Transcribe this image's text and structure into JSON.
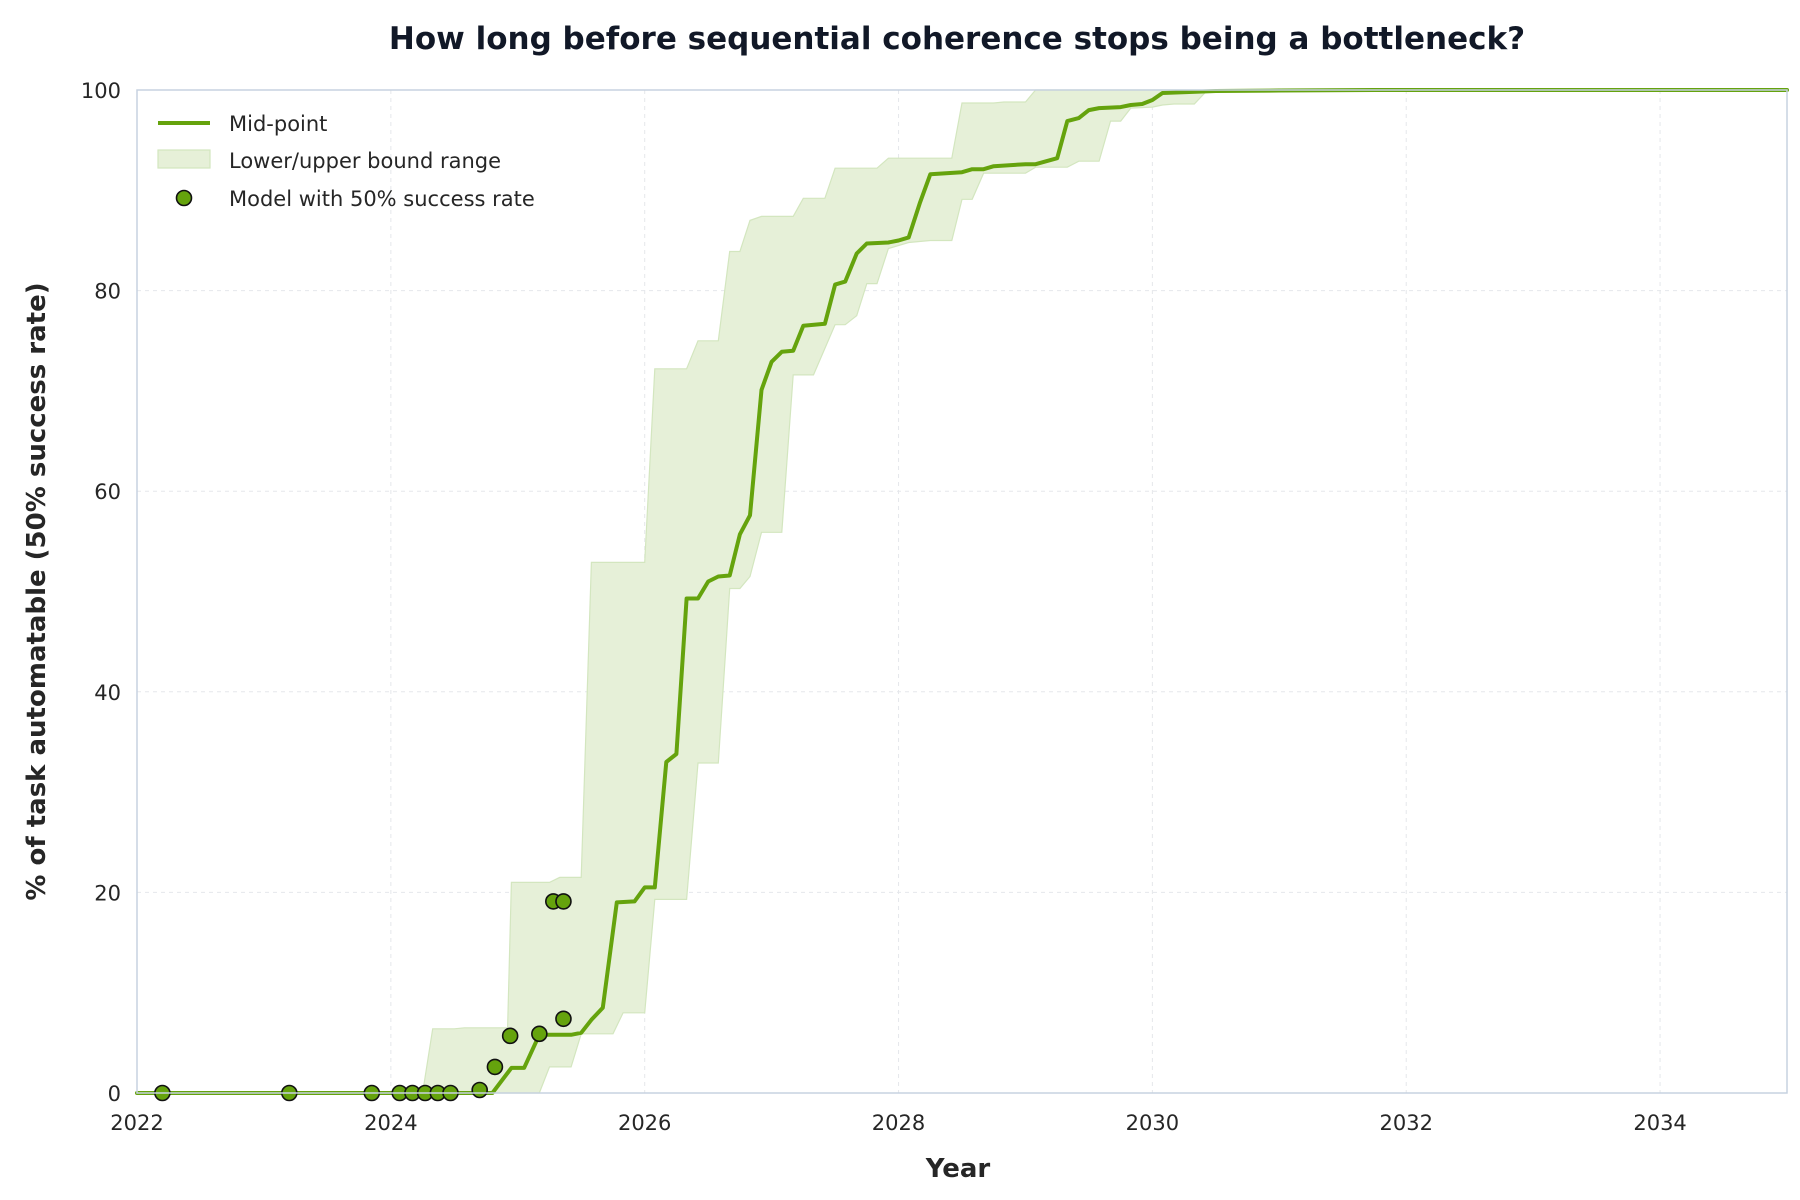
{
  "chart_data": {
    "type": "line",
    "title": "How long before sequential coherence stops being a bottleneck?",
    "xlabel": "Year",
    "ylabel": "% of task automatable (50% success rate)",
    "xlim": [
      2022,
      2035
    ],
    "ylim": [
      0,
      100
    ],
    "xticks": [
      2022,
      2024,
      2026,
      2028,
      2030,
      2032,
      2034
    ],
    "yticks": [
      0,
      20,
      40,
      60,
      80,
      100
    ],
    "grid": true,
    "legend_position": "top-left",
    "colors": {
      "line": "#65a30d",
      "band": "#e6f0d8",
      "band_edge": "#d3e6bf",
      "marker_fill": "#65a30d",
      "marker_edge": "#111111"
    },
    "series": [
      {
        "name": "Mid-point",
        "kind": "line",
        "points": [
          [
            2022.0,
            0
          ],
          [
            2024.8,
            0
          ],
          [
            2024.95,
            2.5
          ],
          [
            2025.05,
            2.5
          ],
          [
            2025.17,
            5.8
          ],
          [
            2025.42,
            5.8
          ],
          [
            2025.5,
            6.0
          ],
          [
            2025.58,
            7.3
          ],
          [
            2025.67,
            8.5
          ],
          [
            2025.78,
            19.0
          ],
          [
            2025.92,
            19.1
          ],
          [
            2026.0,
            20.5
          ],
          [
            2026.08,
            20.5
          ],
          [
            2026.17,
            33.0
          ],
          [
            2026.25,
            33.8
          ],
          [
            2026.33,
            49.3
          ],
          [
            2026.42,
            49.3
          ],
          [
            2026.5,
            51.0
          ],
          [
            2026.58,
            51.5
          ],
          [
            2026.67,
            51.6
          ],
          [
            2026.75,
            55.7
          ],
          [
            2026.83,
            57.6
          ],
          [
            2026.92,
            70.1
          ],
          [
            2027.0,
            72.9
          ],
          [
            2027.08,
            73.9
          ],
          [
            2027.17,
            74.0
          ],
          [
            2027.25,
            76.5
          ],
          [
            2027.42,
            76.7
          ],
          [
            2027.5,
            80.6
          ],
          [
            2027.58,
            80.9
          ],
          [
            2027.67,
            83.7
          ],
          [
            2027.75,
            84.7
          ],
          [
            2027.92,
            84.8
          ],
          [
            2028.0,
            85.0
          ],
          [
            2028.08,
            85.3
          ],
          [
            2028.17,
            88.8
          ],
          [
            2028.25,
            91.6
          ],
          [
            2028.5,
            91.8
          ],
          [
            2028.58,
            92.1
          ],
          [
            2028.67,
            92.1
          ],
          [
            2028.75,
            92.4
          ],
          [
            2029.0,
            92.6
          ],
          [
            2029.08,
            92.6
          ],
          [
            2029.25,
            93.2
          ],
          [
            2029.33,
            96.9
          ],
          [
            2029.42,
            97.2
          ],
          [
            2029.5,
            98.0
          ],
          [
            2029.58,
            98.2
          ],
          [
            2029.75,
            98.3
          ],
          [
            2029.83,
            98.5
          ],
          [
            2029.92,
            98.6
          ],
          [
            2030.0,
            99.0
          ],
          [
            2030.08,
            99.7
          ],
          [
            2030.5,
            99.9
          ],
          [
            2031.0,
            99.95
          ],
          [
            2031.75,
            100
          ],
          [
            2035.0,
            100
          ]
        ]
      },
      {
        "name": "Lower/upper bound range",
        "kind": "band",
        "upper": [
          [
            2022.0,
            0
          ],
          [
            2024.25,
            0
          ],
          [
            2024.33,
            6.4
          ],
          [
            2024.5,
            6.4
          ],
          [
            2024.58,
            6.5
          ],
          [
            2024.92,
            6.5
          ],
          [
            2024.95,
            21.0
          ],
          [
            2025.25,
            21.0
          ],
          [
            2025.33,
            21.5
          ],
          [
            2025.5,
            21.5
          ],
          [
            2025.58,
            52.9
          ],
          [
            2026.0,
            52.9
          ],
          [
            2026.08,
            72.2
          ],
          [
            2026.33,
            72.2
          ],
          [
            2026.42,
            75.0
          ],
          [
            2026.58,
            75.0
          ],
          [
            2026.67,
            83.9
          ],
          [
            2026.75,
            83.9
          ],
          [
            2026.83,
            87.0
          ],
          [
            2026.92,
            87.4
          ],
          [
            2027.17,
            87.4
          ],
          [
            2027.25,
            89.2
          ],
          [
            2027.42,
            89.2
          ],
          [
            2027.5,
            92.2
          ],
          [
            2027.83,
            92.2
          ],
          [
            2027.92,
            93.2
          ],
          [
            2028.42,
            93.2
          ],
          [
            2028.5,
            98.7
          ],
          [
            2028.75,
            98.7
          ],
          [
            2028.83,
            98.8
          ],
          [
            2029.0,
            98.8
          ],
          [
            2029.08,
            100
          ],
          [
            2035.0,
            100
          ]
        ],
        "lower": [
          [
            2022.0,
            0
          ],
          [
            2025.17,
            0
          ],
          [
            2025.25,
            2.6
          ],
          [
            2025.42,
            2.6
          ],
          [
            2025.5,
            5.9
          ],
          [
            2025.75,
            5.9
          ],
          [
            2025.83,
            8.0
          ],
          [
            2026.0,
            8.0
          ],
          [
            2026.08,
            19.3
          ],
          [
            2026.33,
            19.3
          ],
          [
            2026.42,
            32.9
          ],
          [
            2026.58,
            32.9
          ],
          [
            2026.67,
            50.3
          ],
          [
            2026.75,
            50.3
          ],
          [
            2026.83,
            51.5
          ],
          [
            2026.92,
            55.9
          ],
          [
            2027.08,
            55.9
          ],
          [
            2027.17,
            71.6
          ],
          [
            2027.33,
            71.6
          ],
          [
            2027.5,
            76.6
          ],
          [
            2027.58,
            76.6
          ],
          [
            2027.67,
            77.5
          ],
          [
            2027.75,
            80.7
          ],
          [
            2027.83,
            80.7
          ],
          [
            2027.92,
            84.2
          ],
          [
            2028.08,
            84.8
          ],
          [
            2028.25,
            85.0
          ],
          [
            2028.42,
            85.0
          ],
          [
            2028.5,
            89.1
          ],
          [
            2028.58,
            89.1
          ],
          [
            2028.67,
            91.7
          ],
          [
            2029.0,
            91.7
          ],
          [
            2029.08,
            92.3
          ],
          [
            2029.33,
            92.3
          ],
          [
            2029.42,
            92.9
          ],
          [
            2029.58,
            92.9
          ],
          [
            2029.67,
            96.9
          ],
          [
            2029.75,
            96.9
          ],
          [
            2029.83,
            98.2
          ],
          [
            2030.0,
            98.3
          ],
          [
            2030.08,
            98.5
          ],
          [
            2030.17,
            98.6
          ],
          [
            2030.33,
            98.6
          ],
          [
            2030.42,
            99.8
          ],
          [
            2030.58,
            100
          ],
          [
            2035.0,
            100
          ]
        ]
      },
      {
        "name": "Model with 50% success rate",
        "kind": "scatter",
        "points": [
          [
            2022.2,
            0
          ],
          [
            2023.2,
            0
          ],
          [
            2023.85,
            0
          ],
          [
            2024.07,
            0
          ],
          [
            2024.17,
            0
          ],
          [
            2024.27,
            0
          ],
          [
            2024.37,
            0
          ],
          [
            2024.47,
            0
          ],
          [
            2024.7,
            0.3
          ],
          [
            2024.82,
            2.6
          ],
          [
            2024.94,
            5.7
          ],
          [
            2025.17,
            5.9
          ],
          [
            2025.28,
            19.1
          ],
          [
            2025.36,
            19.1
          ],
          [
            2025.36,
            7.4
          ]
        ]
      }
    ]
  }
}
